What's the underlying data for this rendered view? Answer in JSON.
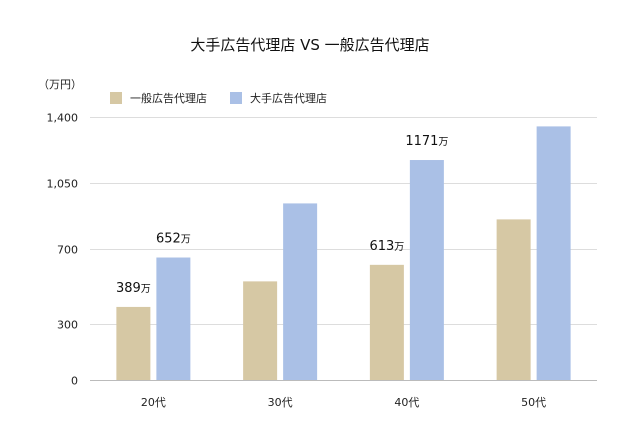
{
  "chart_data": {
    "type": "bar",
    "title": "大手広告代理店 VS 一般広告代理店",
    "unit_label": "（万円）",
    "ylim": [
      0,
      1400
    ],
    "yticks": [
      0,
      300,
      700,
      1050,
      1400
    ],
    "ytick_labels": [
      "0",
      "300",
      "700",
      "1,050",
      "1,400"
    ],
    "categories": [
      "20代",
      "30代",
      "40代",
      "50代"
    ],
    "grid": true,
    "legend_position": "top-left",
    "series": [
      {
        "name": "一般広告代理店",
        "color": "#d6c8a4",
        "values": [
          389,
          525,
          613,
          855
        ],
        "data_labels": [
          "389",
          null,
          "613",
          null
        ]
      },
      {
        "name": "大手広告代理店",
        "color": "#aac0e6",
        "values": [
          652,
          940,
          1171,
          1350
        ],
        "data_labels": [
          "652",
          null,
          "1171",
          null
        ]
      }
    ],
    "data_label_unit": "万"
  }
}
